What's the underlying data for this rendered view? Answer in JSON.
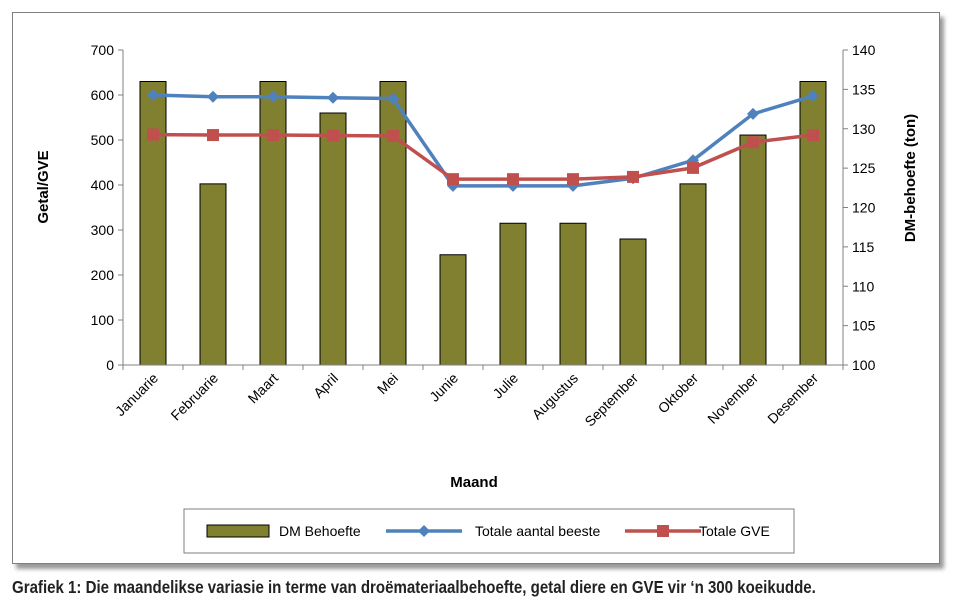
{
  "caption": "Grafiek 1: Die maandelikse variasie in terme van droëmateriaalbehoefte, getal diere en GVE vir ‘n 300 koeikudde.",
  "chart_data": {
    "type": "bar",
    "categories": [
      "Januarie",
      "Februarie",
      "Maart",
      "April",
      "Mei",
      "Junie",
      "Julie",
      "Augustus",
      "September",
      "Oktober",
      "November",
      "Desember"
    ],
    "xlabel": "Maand",
    "ylabel": "Getal/GVE",
    "y2label": "DM-behoefte (ton)",
    "ylim": [
      0,
      700
    ],
    "y2lim": [
      100,
      140
    ],
    "yticks": [
      0,
      100,
      200,
      300,
      400,
      500,
      600,
      700
    ],
    "y2ticks": [
      100,
      105,
      110,
      115,
      120,
      125,
      130,
      135,
      140
    ],
    "grid": false,
    "legend_position": "bottom",
    "series": [
      {
        "name": "DM Behoefte",
        "type": "bar",
        "axis": "right",
        "color": "#808030",
        "values": [
          136,
          123,
          136,
          132,
          136,
          114,
          118,
          118,
          116,
          123,
          129.2,
          136
        ]
      },
      {
        "name": "Totale aantal beeste",
        "type": "line",
        "axis": "left",
        "color": "#4f81bd",
        "marker": "diamond",
        "values": [
          600,
          596,
          596,
          594,
          592,
          398,
          398,
          398,
          415,
          455,
          558,
          598
        ]
      },
      {
        "name": "Totale GVE",
        "type": "line",
        "axis": "left",
        "color": "#c0504d",
        "marker": "square",
        "values": [
          512,
          511,
          511,
          510,
          509,
          413,
          413,
          413,
          418,
          438,
          495,
          511
        ]
      }
    ]
  }
}
